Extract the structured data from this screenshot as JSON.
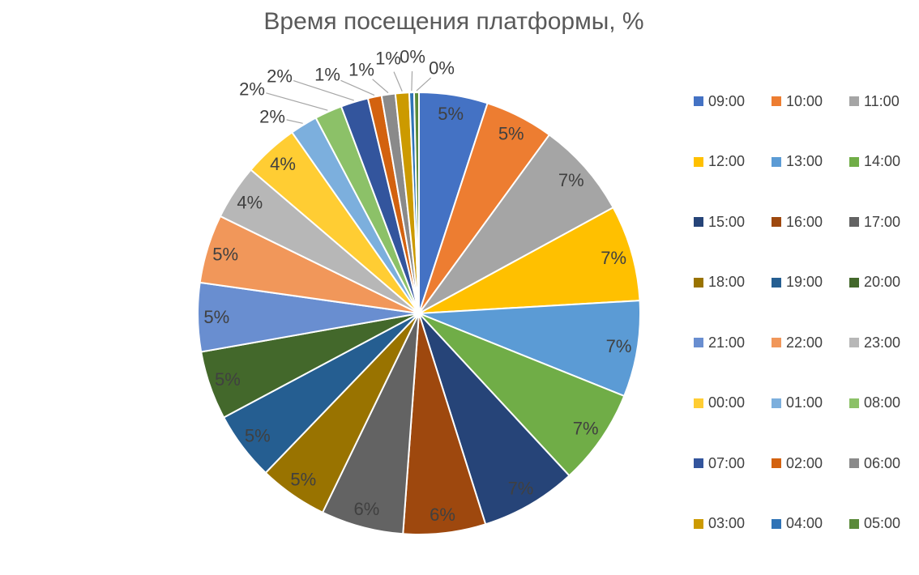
{
  "chart_data": {
    "type": "pie",
    "title": "Время посещения платформы, %",
    "unit": "%",
    "legend_position": "right",
    "start_angle": "12-o-clock",
    "direction": "clockwise",
    "styles": {
      "title_color": "#595959",
      "label_color": "#404040",
      "leader_line_color": "#A6A6A6",
      "slice_border_color": "#FFFFFF",
      "background": "#FFFFFF"
    },
    "slices": [
      {
        "name": "09:00",
        "value": 5,
        "label": "5%",
        "color": "#4472C4"
      },
      {
        "name": "10:00",
        "value": 5,
        "label": "5%",
        "color": "#ED7D31"
      },
      {
        "name": "11:00",
        "value": 7,
        "label": "7%",
        "color": "#A5A5A5"
      },
      {
        "name": "12:00",
        "value": 7,
        "label": "7%",
        "color": "#FFC000"
      },
      {
        "name": "13:00",
        "value": 7,
        "label": "7%",
        "color": "#5B9BD5"
      },
      {
        "name": "14:00",
        "value": 7,
        "label": "7%",
        "color": "#70AD47"
      },
      {
        "name": "15:00",
        "value": 7,
        "label": "7%",
        "color": "#264478"
      },
      {
        "name": "16:00",
        "value": 6,
        "label": "6%",
        "color": "#9E480E"
      },
      {
        "name": "17:00",
        "value": 6,
        "label": "6%",
        "color": "#636363"
      },
      {
        "name": "18:00",
        "value": 5,
        "label": "5%",
        "color": "#997300"
      },
      {
        "name": "19:00",
        "value": 5,
        "label": "5%",
        "color": "#255E91"
      },
      {
        "name": "20:00",
        "value": 5,
        "label": "5%",
        "color": "#43682B"
      },
      {
        "name": "21:00",
        "value": 5,
        "label": "5%",
        "color": "#698ED0"
      },
      {
        "name": "22:00",
        "value": 5,
        "label": "5%",
        "color": "#F1975A"
      },
      {
        "name": "23:00",
        "value": 4,
        "label": "4%",
        "color": "#B7B7B7"
      },
      {
        "name": "00:00",
        "value": 4,
        "label": "4%",
        "color": "#FFCD33"
      },
      {
        "name": "01:00",
        "value": 2,
        "label": "2%",
        "color": "#7CAFDD"
      },
      {
        "name": "08:00",
        "value": 2,
        "label": "2%",
        "color": "#8CC168"
      },
      {
        "name": "07:00",
        "value": 2,
        "label": "2%",
        "color": "#33559D"
      },
      {
        "name": "02:00",
        "value": 1,
        "label": "1%",
        "color": "#D3620F"
      },
      {
        "name": "06:00",
        "value": 1,
        "label": "1%",
        "color": "#8A8A8A"
      },
      {
        "name": "03:00",
        "value": 1,
        "label": "1%",
        "color": "#CC9A00"
      },
      {
        "name": "04:00",
        "value": 0,
        "label": "0%",
        "color": "#2F73B6"
      },
      {
        "name": "05:00",
        "value": 0,
        "label": "0%",
        "color": "#5A8A39"
      }
    ]
  }
}
